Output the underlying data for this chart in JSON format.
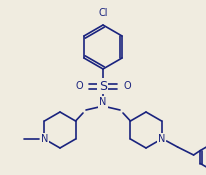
{
  "background_color": "#f0ece0",
  "line_color": "#1a237e",
  "text_color": "#1a237e",
  "figsize": [
    2.06,
    1.75
  ],
  "dpi": 100,
  "lw": 1.2,
  "xlim": [
    0,
    206
  ],
  "ylim": [
    0,
    175
  ]
}
